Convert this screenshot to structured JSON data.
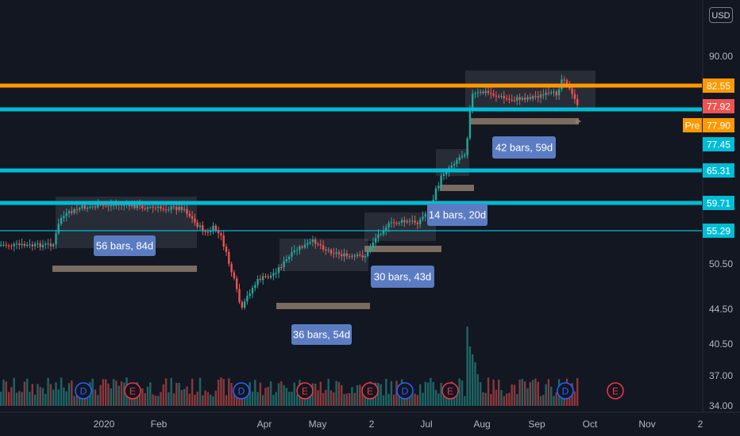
{
  "currency_label": "USD",
  "colors": {
    "background": "#131722",
    "up": "#26a69a",
    "down": "#ef5350",
    "resistance": "#ff9800",
    "support": "#00bcd4",
    "annotation_box": "#5b7cc2",
    "range_bar": "#8d7b68",
    "axis_text": "#b2b5be"
  },
  "chart_data": {
    "type": "candlestick",
    "x_ticks": [
      "2020",
      "Feb",
      "Apr",
      "May",
      "2",
      "Jul",
      "Aug",
      "Sep",
      "Oct",
      "Nov",
      "2"
    ],
    "y_ticks": [
      "90.00",
      "50.50",
      "44.50",
      "40.50",
      "37.00",
      "34.00"
    ],
    "horizontal_levels": [
      {
        "price": "82.55",
        "color": "#ff9800"
      },
      {
        "price": "77.92",
        "color": "#00bcd4"
      },
      {
        "price": "65.31",
        "color": "#00bcd4"
      },
      {
        "price": "59.71",
        "color": "#00bcd4"
      },
      {
        "price": "55.29",
        "color": "#00bcd4"
      }
    ],
    "price_labels": [
      {
        "text": "82.55",
        "color": "#ff9800"
      },
      {
        "text": "77.92",
        "color": "#ef5350"
      },
      {
        "text": "77.90",
        "color": "#ff9800",
        "prefix": "Pre"
      },
      {
        "text": "77.45",
        "color": "#00bcd4"
      },
      {
        "text": "65.31",
        "color": "#00bcd4"
      },
      {
        "text": "59.71",
        "color": "#00bcd4"
      },
      {
        "text": "55.29",
        "color": "#00bcd4"
      }
    ],
    "range_annotations": [
      {
        "label": "56 bars, 84d"
      },
      {
        "label": "36 bars, 54d"
      },
      {
        "label": "30 bars, 43d"
      },
      {
        "label": "14 bars, 20d"
      },
      {
        "label": "42 bars, 59d"
      }
    ],
    "event_markers": [
      "D",
      "E",
      "D",
      "E",
      "E",
      "D",
      "E",
      "D",
      "E"
    ]
  }
}
